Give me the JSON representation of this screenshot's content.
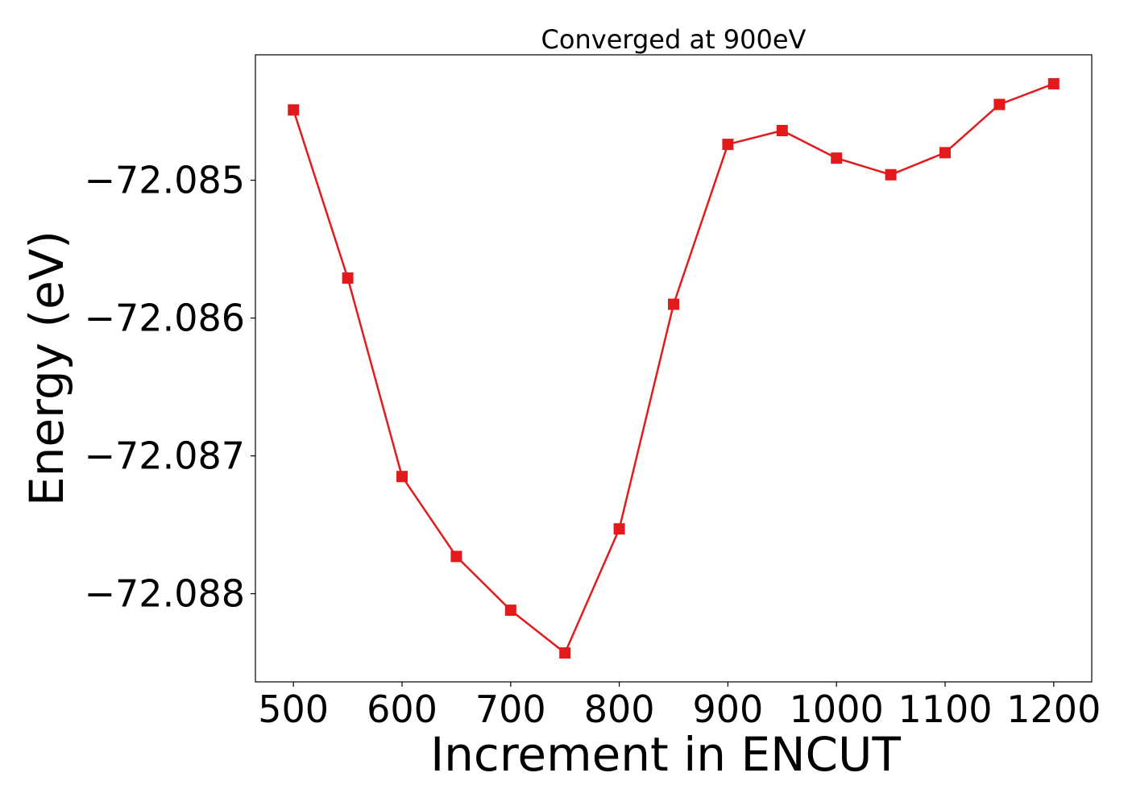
{
  "chart_data": {
    "type": "line",
    "title": "Converged at 900eV",
    "xlabel": "Increment in ENCUT",
    "ylabel": "Energy (eV)",
    "x": [
      500,
      550,
      600,
      650,
      700,
      750,
      800,
      850,
      900,
      950,
      1000,
      1050,
      1100,
      1150,
      1200
    ],
    "series": [
      {
        "values": [
          -72.08449,
          -72.08571,
          -72.08715,
          -72.08773,
          -72.08812,
          -72.08843,
          -72.08753,
          -72.0859,
          -72.08474,
          -72.08464,
          -72.08484,
          -72.08496,
          -72.0848,
          -72.08445,
          -72.0843
        ],
        "color": "#e31a1c",
        "marker": "square"
      }
    ],
    "xticks": [
      500,
      600,
      700,
      800,
      900,
      1000,
      1100,
      1200
    ],
    "xtick_labels": [
      "500",
      "600",
      "700",
      "800",
      "900",
      "1000",
      "1100",
      "1200"
    ],
    "yticks": [
      -72.085,
      -72.086,
      -72.087,
      -72.088
    ],
    "ytick_labels": [
      "−72.085",
      "−72.086",
      "−72.087",
      "−72.088"
    ],
    "xlim": [
      465,
      1235
    ],
    "ylim": [
      -72.08864,
      -72.08409
    ],
    "grid": false,
    "legend": "none"
  }
}
